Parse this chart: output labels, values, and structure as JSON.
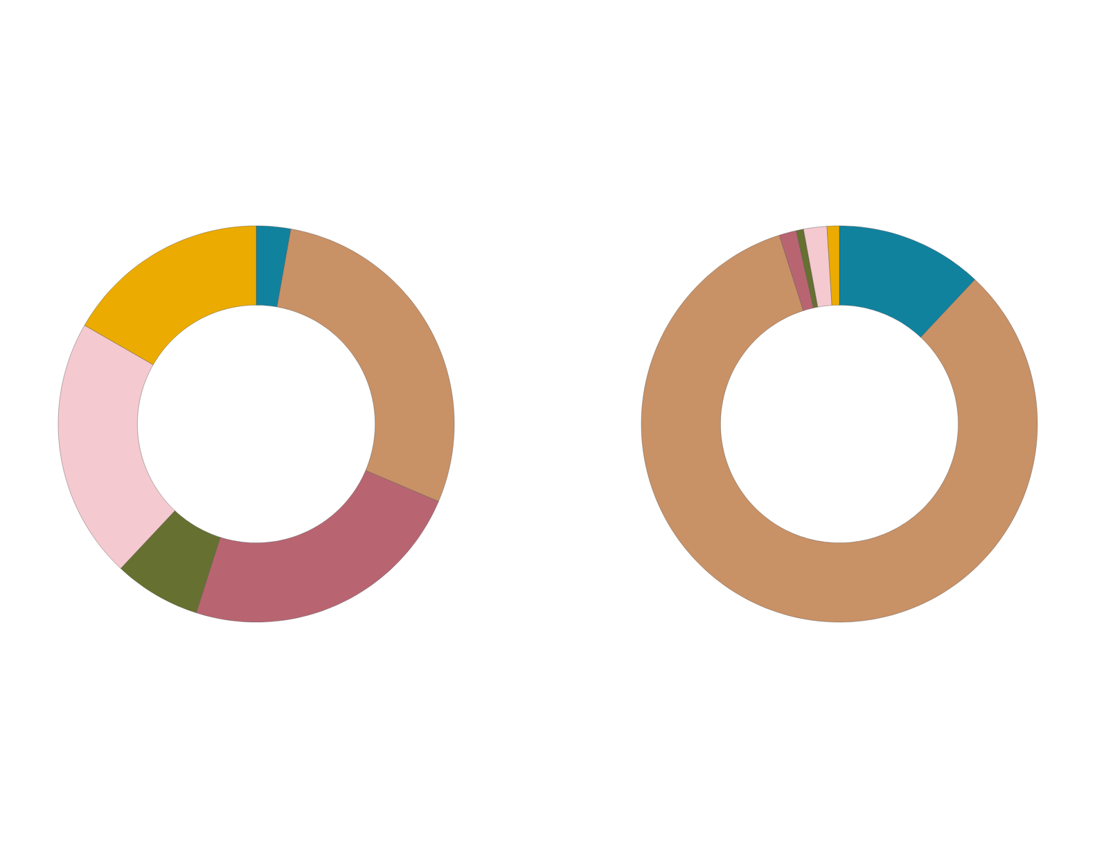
{
  "chart_data": [
    {
      "type": "donut",
      "categories": [
        null,
        null,
        null,
        null,
        null,
        null
      ],
      "values": [
        2.8,
        28.6,
        23.5,
        7.1,
        21.3,
        16.7
      ],
      "colors": [
        "#11829e",
        "#c99166",
        "#b86571",
        "#667030",
        "#f4c9cf",
        "#ebab00"
      ]
    },
    {
      "type": "donut",
      "categories": [
        null,
        null,
        null,
        null,
        null,
        null
      ],
      "values": [
        12.0,
        83.1,
        1.4,
        0.6,
        1.9,
        1.0
      ],
      "colors": [
        "#11829e",
        "#c99166",
        "#b86571",
        "#667030",
        "#f4c9cf",
        "#ebab00"
      ]
    }
  ]
}
